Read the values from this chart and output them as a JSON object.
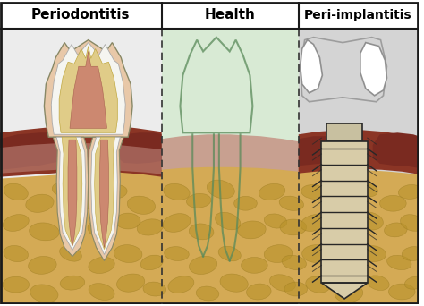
{
  "title_left": "Periodontitis",
  "title_center": "Health",
  "title_right": "Peri-implantitis",
  "bg_left": "#ececec",
  "bg_center": "#d8ead4",
  "bg_right": "#d4d4d4",
  "bone_color": "#d4aa55",
  "bone_stone_dark": "#b8922a",
  "gum_pink": "#c8958a",
  "gum_disease_dark": "#7a2a20",
  "gum_disease_mid": "#8b3525",
  "tooth_outer_cream": "#e8c8a8",
  "tooth_white": "#f5f5f0",
  "tooth_dentin": "#e0cc88",
  "tooth_pulp": "#cc8870",
  "implant_body": "#d8cca8",
  "implant_edge": "#282828",
  "border_color": "#1a1a1a",
  "header_bg": "#ffffff",
  "div_color": "#333333",
  "ghost_color": "#6a6a6a"
}
